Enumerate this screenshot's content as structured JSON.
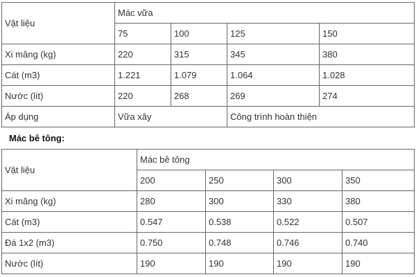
{
  "mortar_table": {
    "row_header": "Vật liệu",
    "group_header": "Mác vữa",
    "grades": [
      "75",
      "100",
      "125",
      "150"
    ],
    "rows": [
      {
        "label": "Xi măng (kg)",
        "values": [
          "220",
          "315",
          "345",
          "380"
        ]
      },
      {
        "label": "Cát (m3)",
        "values": [
          "1.221",
          "1.079",
          "1.064",
          "1.028"
        ]
      },
      {
        "label": "Nước (lít)",
        "values": [
          "220",
          "268",
          "269",
          "274"
        ]
      }
    ],
    "application": {
      "label": "Áp dụng",
      "values": [
        "Vữa xây",
        "Công trình hoàn thiện"
      ]
    }
  },
  "concrete_title": "Mác bê tông:",
  "concrete_table": {
    "row_header": "Vật liệu",
    "group_header": "Mác bê tông",
    "grades": [
      "200",
      "250",
      "300",
      "350"
    ],
    "rows": [
      {
        "label": "Xi măng (kg)",
        "values": [
          "280",
          "300",
          "330",
          "380"
        ]
      },
      {
        "label": "Cát (m3)",
        "values": [
          "0.547",
          "0.538",
          "0.522",
          "0.507"
        ]
      },
      {
        "label": "Đá 1x2 (m3)",
        "values": [
          "0.750",
          "0.748",
          "0.746",
          "0.740"
        ]
      },
      {
        "label": "Nước (lít)",
        "values": [
          "190",
          "190",
          "190",
          "190"
        ]
      }
    ]
  }
}
